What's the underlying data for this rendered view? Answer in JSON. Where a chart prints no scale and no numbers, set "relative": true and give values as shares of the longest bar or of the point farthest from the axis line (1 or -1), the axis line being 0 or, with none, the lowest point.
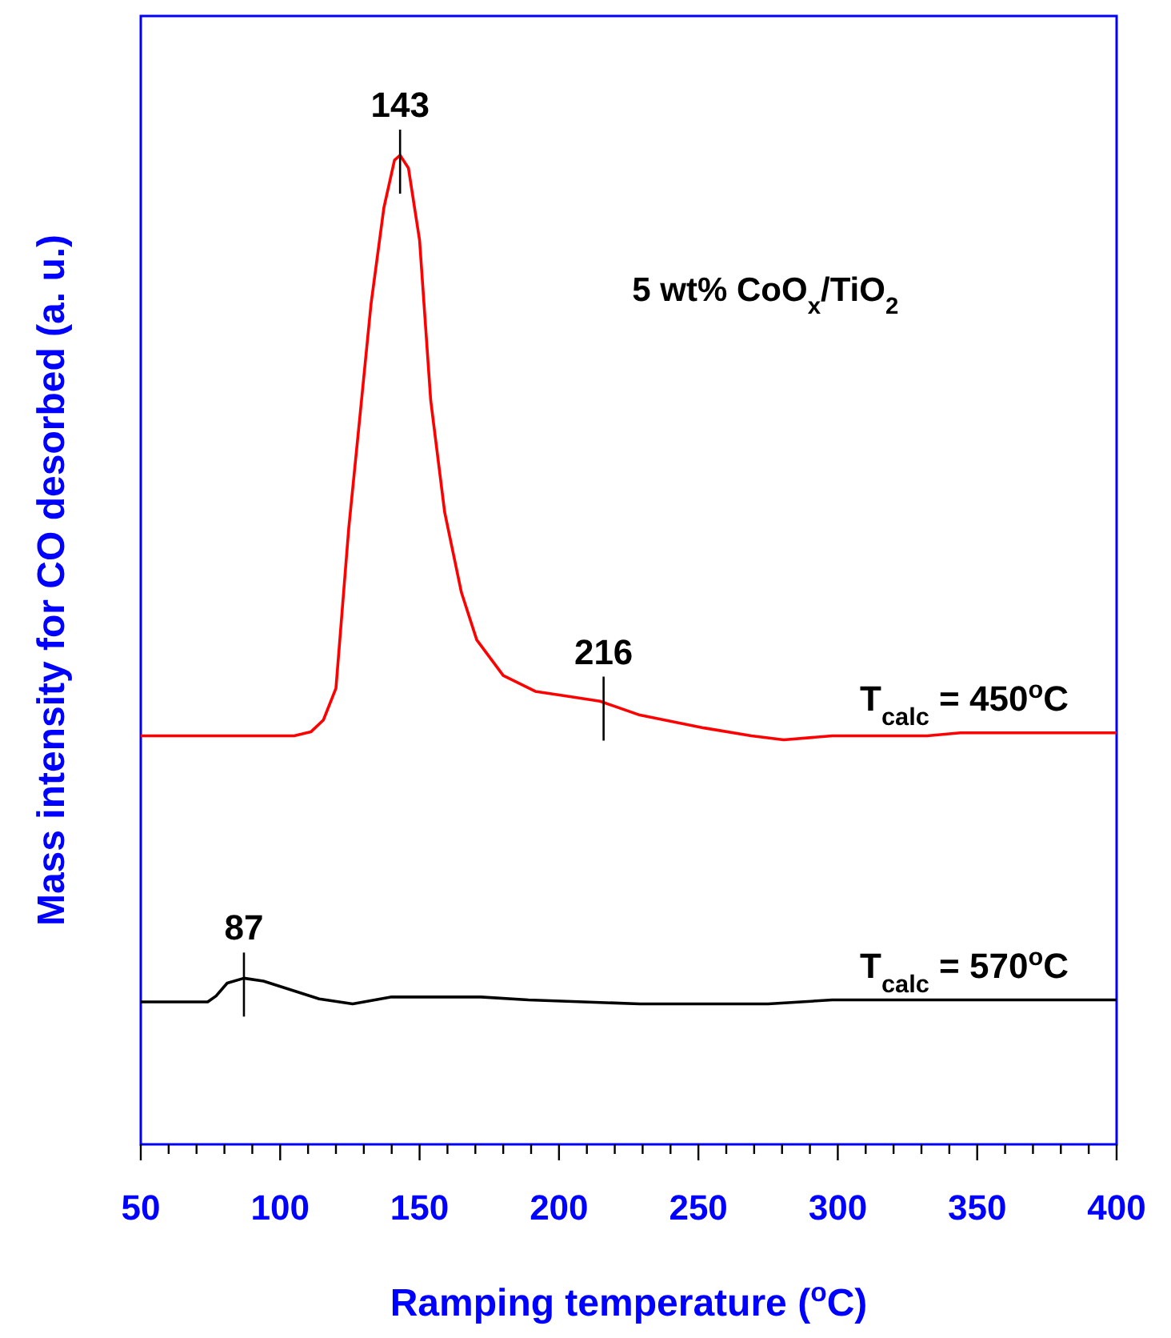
{
  "chart_data": {
    "type": "line",
    "relative": true,
    "xlabel": "Ramping temperature ($^{o}$C)",
    "ylabel": "Mass intensity for CO desorbed (a. u.)",
    "xlim": [
      50,
      400
    ],
    "xticks": [
      50,
      {
        "value": 60,
        "label": null
      },
      {
        "value": 70,
        "label": null
      },
      {
        "value": 80,
        "label": null
      },
      {
        "value": 90,
        "label": null
      },
      100,
      {
        "value": 110,
        "label": null
      },
      {
        "value": 120,
        "label": null
      },
      {
        "value": 130,
        "label": null
      },
      {
        "value": 140,
        "label": null
      },
      150,
      {
        "value": 160,
        "label": null
      },
      {
        "value": 170,
        "label": null
      },
      {
        "value": 180,
        "label": null
      },
      {
        "value": 190,
        "label": null
      },
      200,
      {
        "value": 210,
        "label": null
      },
      {
        "value": 220,
        "label": null
      },
      {
        "value": 230,
        "label": null
      },
      {
        "value": 240,
        "label": null
      },
      250,
      {
        "value": 260,
        "label": null
      },
      {
        "value": 270,
        "label": null
      },
      {
        "value": 280,
        "label": null
      },
      {
        "value": 290,
        "label": null
      },
      300,
      {
        "value": 310,
        "label": null
      },
      {
        "value": 320,
        "label": null
      },
      {
        "value": 330,
        "label": null
      },
      {
        "value": 340,
        "label": null
      },
      350,
      {
        "value": 360,
        "label": null
      },
      {
        "value": 370,
        "label": null
      },
      {
        "value": 380,
        "label": null
      },
      {
        "value": 390,
        "label": null
      },
      400
    ],
    "grid": false,
    "marker": "none",
    "line_style": "solid",
    "series": [
      {
        "name": "T$_{calc}$ = 450$^{o}$C",
        "color": "#ff0000",
        "x": [
          50,
          105,
          111,
          115.5,
          120,
          124.6,
          128.6,
          132.6,
          137.2,
          141,
          143,
          146,
          150,
          154,
          159,
          165,
          170.5,
          180,
          191.5,
          203,
          214.7,
          229,
          252,
          269,
          280.6,
          298,
          332,
          344,
          400
        ],
        "values": [
          0.413,
          0.413,
          0.417,
          0.429,
          0.461,
          0.623,
          0.736,
          0.85,
          0.947,
          0.995,
          1,
          0.987,
          0.914,
          0.752,
          0.639,
          0.558,
          0.51,
          0.474,
          0.458,
          0.453,
          0.448,
          0.434,
          0.421,
          0.413,
          0.409,
          0.413,
          0.413,
          0.416,
          0.416
        ]
      },
      {
        "name": "T$_{calc}$ = 570$^{o}$C",
        "color": "#000000",
        "x": [
          50,
          74,
          77,
          81,
          87,
          94,
          103,
          114,
          126,
          140,
          172,
          189,
          229,
          275,
          298,
          400
        ],
        "values": [
          0.144,
          0.144,
          0.15,
          0.163,
          0.168,
          0.165,
          0.157,
          0.147,
          0.142,
          0.149,
          0.149,
          0.146,
          0.142,
          0.142,
          0.146,
          0.146
        ]
      }
    ],
    "annotations": [
      "5 wt% CoO$_{x}$/TiO$_{2}$",
      {
        "text": "143",
        "x": 143,
        "y": 1
      },
      {
        "text": "216",
        "x": 216,
        "y": 0.447
      },
      {
        "text": "87",
        "x": 87,
        "y": 0.168
      }
    ]
  }
}
